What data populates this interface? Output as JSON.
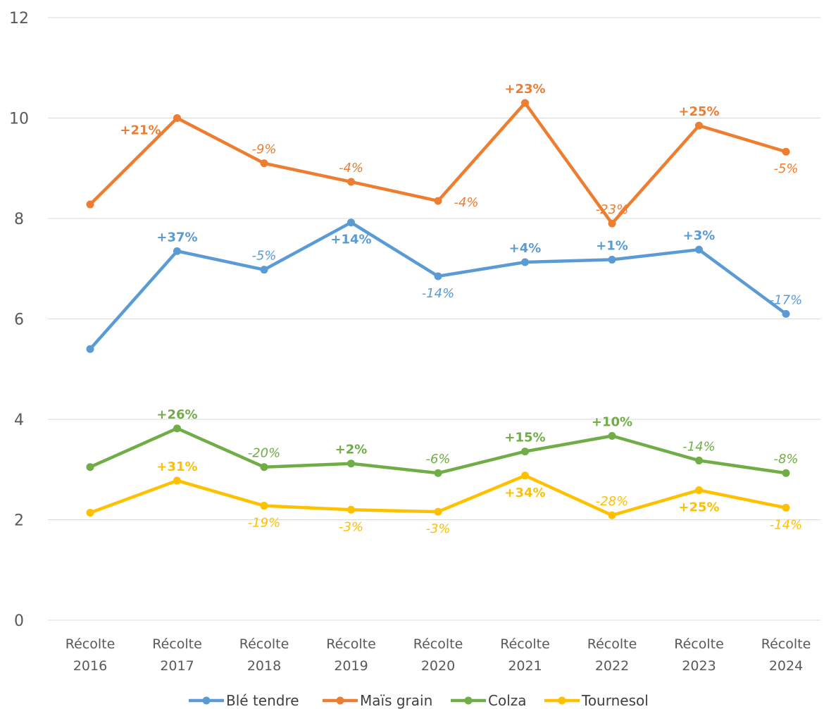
{
  "chart_data": {
    "type": "line",
    "title": "",
    "xlabel": "",
    "ylabel": "",
    "ylim": [
      0,
      12
    ],
    "yticks": [
      0,
      2,
      4,
      6,
      8,
      10,
      12
    ],
    "grid": "horizontal",
    "legend_position": "bottom",
    "categories": [
      [
        "Récolte",
        "2016"
      ],
      [
        "Récolte",
        "2017"
      ],
      [
        "Récolte",
        "2018"
      ],
      [
        "Récolte",
        "2019"
      ],
      [
        "Récolte",
        "2020"
      ],
      [
        "Récolte",
        "2021"
      ],
      [
        "Récolte",
        "2022"
      ],
      [
        "Récolte",
        "2023"
      ],
      [
        "Récolte",
        "2024"
      ]
    ],
    "series": [
      {
        "name": "Blé tendre",
        "color": "#5b9bd5",
        "values": [
          5.4,
          7.35,
          6.98,
          7.92,
          6.85,
          7.13,
          7.18,
          7.38,
          6.1
        ],
        "labels": [
          null,
          "+37%",
          "-5%",
          "+14%",
          "-14%",
          "+4%",
          "+1%",
          "+3%",
          "-17%"
        ],
        "label_side": [
          null,
          "above",
          "above",
          "below",
          "below",
          "above",
          "above",
          "above",
          "above"
        ]
      },
      {
        "name": "Maïs grain",
        "color": "#ed7d31",
        "values": [
          8.28,
          10.0,
          9.1,
          8.73,
          8.35,
          10.3,
          7.9,
          9.85,
          9.33
        ],
        "labels": [
          null,
          "+21%",
          "-9%",
          "-4%",
          "-4%",
          "+23%",
          "-23%",
          "+25%",
          "-5%"
        ],
        "label_side": [
          null,
          "left",
          "above",
          "above",
          "right",
          "above",
          "above",
          "above",
          "below"
        ]
      },
      {
        "name": "Colza",
        "color": "#70ad47",
        "values": [
          3.05,
          3.82,
          3.05,
          3.12,
          2.93,
          3.36,
          3.67,
          3.18,
          2.93
        ],
        "labels": [
          null,
          "+26%",
          "-20%",
          "+2%",
          "-6%",
          "+15%",
          "+10%",
          "-14%",
          "-8%"
        ],
        "label_side": [
          null,
          "above",
          "above",
          "above",
          "above",
          "above",
          "above",
          "above",
          "above"
        ]
      },
      {
        "name": "Tournesol",
        "color": "#ffc000",
        "values": [
          2.14,
          2.78,
          2.28,
          2.2,
          2.16,
          2.88,
          2.09,
          2.59,
          2.24
        ],
        "labels": [
          null,
          "+31%",
          "-19%",
          "-3%",
          "-3%",
          "+34%",
          "-28%",
          "+25%",
          "-14%"
        ],
        "label_side": [
          null,
          "above",
          "below",
          "below",
          "below",
          "below",
          "above",
          "below",
          "below"
        ]
      }
    ]
  }
}
